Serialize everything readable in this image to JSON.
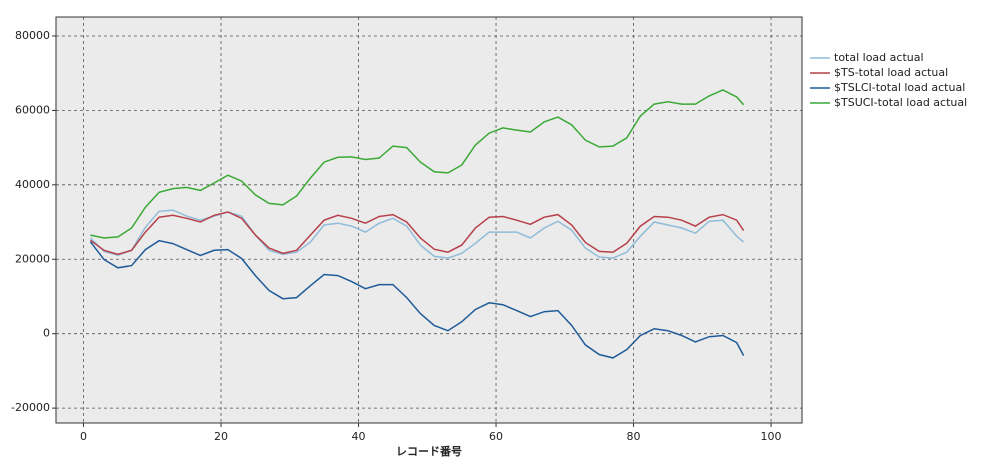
{
  "chart_data": {
    "type": "line",
    "x_label": "レコード番号",
    "x": [
      1,
      3,
      5,
      7,
      9,
      11,
      13,
      15,
      17,
      19,
      21,
      23,
      25,
      27,
      29,
      31,
      33,
      35,
      37,
      39,
      41,
      43,
      45,
      47,
      49,
      51,
      53,
      55,
      57,
      59,
      61,
      63,
      65,
      67,
      69,
      71,
      73,
      75,
      77,
      79,
      81,
      83,
      85,
      87,
      89,
      91,
      93,
      95,
      96
    ],
    "series": [
      {
        "name": "total load actual",
        "color": "#8fbcd9",
        "values": [
          25700,
          22100,
          21100,
          22400,
          28600,
          32900,
          33200,
          31600,
          30500,
          31600,
          32700,
          31600,
          26500,
          22400,
          21300,
          21900,
          24600,
          29200,
          29700,
          28900,
          27300,
          29700,
          31000,
          28900,
          23800,
          20800,
          20300,
          21600,
          24300,
          27300,
          27300,
          27300,
          25700,
          28400,
          30200,
          27800,
          23000,
          20600,
          20300,
          21900,
          26200,
          30000,
          29200,
          28400,
          27000,
          30200,
          30500,
          26200,
          24600
        ]
      },
      {
        "name": "$TS-total load actual",
        "color": "#b6404a",
        "values": [
          25100,
          22400,
          21300,
          22400,
          27300,
          31300,
          31800,
          31000,
          30000,
          31800,
          32700,
          31000,
          26500,
          23000,
          21600,
          22400,
          26500,
          30500,
          31800,
          31000,
          29700,
          31500,
          32000,
          30000,
          25700,
          22700,
          21900,
          23800,
          28400,
          31300,
          31500,
          30500,
          29400,
          31300,
          32000,
          29200,
          24500,
          22100,
          21900,
          24300,
          28900,
          31500,
          31300,
          30500,
          28900,
          31300,
          32000,
          30500,
          27700
        ]
      },
      {
        "name": "$TSLCI-total load actual",
        "color": "#1f5b99",
        "values": [
          24700,
          19900,
          17700,
          18300,
          22600,
          25000,
          24200,
          22600,
          21000,
          22400,
          22600,
          20200,
          15600,
          11600,
          9400,
          9700,
          12900,
          15900,
          15600,
          14000,
          12100,
          13200,
          13200,
          9700,
          5400,
          2200,
          800,
          3200,
          6500,
          8300,
          7800,
          6200,
          4600,
          5900,
          6200,
          2200,
          -3000,
          -5600,
          -6500,
          -4300,
          -500,
          1300,
          800,
          -500,
          -2200,
          -800,
          -500,
          -2400,
          -5900
        ]
      },
      {
        "name": "$TSUCI-total load actual",
        "color": "#3aa935",
        "values": [
          26500,
          25700,
          26000,
          28400,
          34000,
          38000,
          39000,
          39300,
          38500,
          40500,
          42600,
          41000,
          37300,
          35000,
          34600,
          37000,
          41800,
          46100,
          47400,
          47500,
          46800,
          47200,
          50400,
          50000,
          46100,
          43500,
          43200,
          45300,
          50700,
          53900,
          55300,
          54700,
          54200,
          56900,
          58200,
          56100,
          52000,
          50200,
          50400,
          52600,
          58500,
          61700,
          62300,
          61700,
          61700,
          63900,
          65500,
          63600,
          61500
        ]
      }
    ],
    "xlim": [
      -4,
      104.5
    ],
    "xticks": [
      0,
      20,
      40,
      60,
      80,
      100
    ],
    "ylim": [
      -24000,
      85100
    ],
    "yticks": [
      -20000,
      0,
      20000,
      40000,
      60000,
      80000
    ],
    "grid": true
  }
}
